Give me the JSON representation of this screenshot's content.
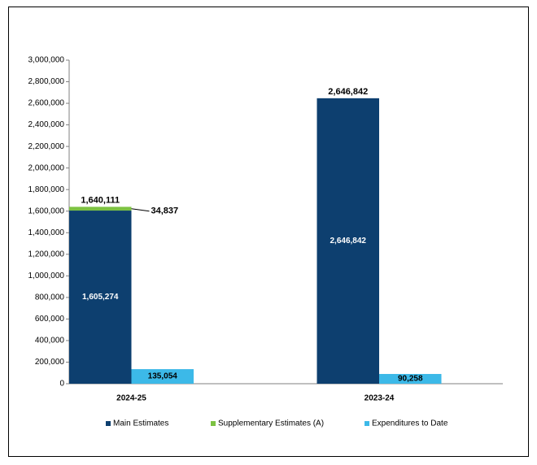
{
  "chart_data": {
    "type": "bar",
    "categories": [
      "2024-25",
      "2023-24"
    ],
    "series": [
      {
        "name": "Main Estimates",
        "color": "#0d3f6f",
        "values": [
          1605274,
          2646842
        ],
        "value_labels": [
          "1,605,274",
          "2,646,842"
        ]
      },
      {
        "name": "Supplementary Estimates (A)",
        "color": "#7cc242",
        "values": [
          34837,
          null
        ],
        "value_labels": [
          "34,837",
          null
        ]
      },
      {
        "name": "Expenditures to Date",
        "color": "#3cb9e8",
        "values": [
          135054,
          90258
        ],
        "value_labels": [
          "135,054",
          "90,258"
        ]
      }
    ],
    "totals": {
      "values": [
        1640111,
        2646842
      ],
      "value_labels": [
        "1,640,111",
        "2,646,842"
      ]
    },
    "ylim": [
      0,
      3000000
    ],
    "yticks": [
      0,
      {
        "value": 200000,
        "label": "200,000"
      },
      {
        "value": 400000,
        "label": "400,000"
      },
      {
        "value": 600000,
        "label": "600,000"
      },
      {
        "value": 800000,
        "label": "800,000"
      },
      {
        "value": 1000000,
        "label": "1,000,000"
      },
      {
        "value": 1200000,
        "label": "1,200,000"
      },
      {
        "value": 1400000,
        "label": "1,400,000"
      },
      {
        "value": 1600000,
        "label": "1,600,000"
      },
      {
        "value": 1800000,
        "label": "1,800,000"
      },
      {
        "value": 2000000,
        "label": "2,000,000"
      },
      {
        "value": 2200000,
        "label": "2,200,000"
      },
      {
        "value": 2400000,
        "label": "2,400,000"
      },
      {
        "value": 2600000,
        "label": "2,600,000"
      },
      {
        "value": 2800000,
        "label": "2,800,000"
      },
      {
        "value": 3000000,
        "label": "3,000,000"
      }
    ],
    "grid": false,
    "legend": "bottom"
  }
}
